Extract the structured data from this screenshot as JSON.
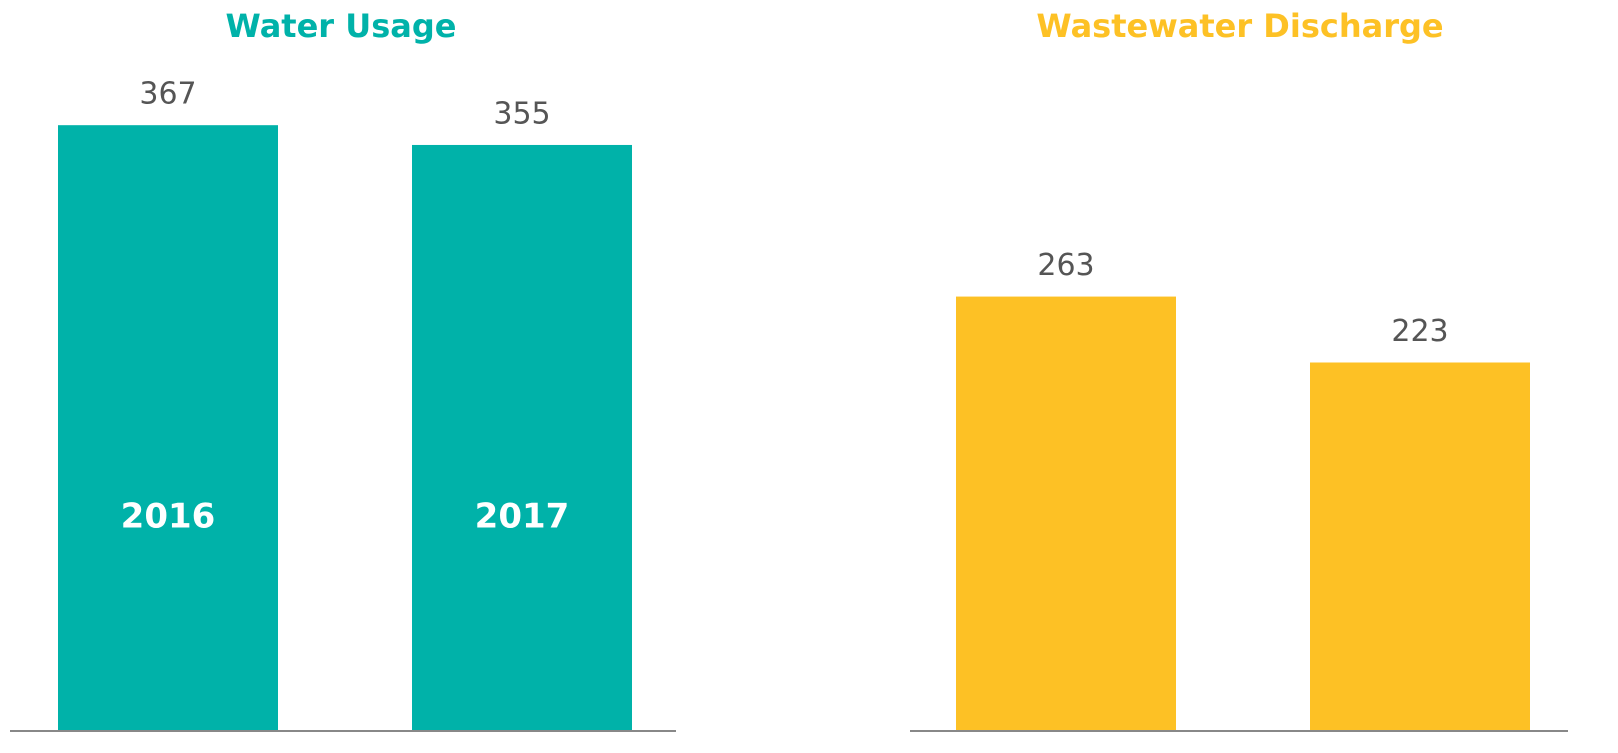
{
  "chart_data": [
    {
      "type": "bar",
      "title": "Water Usage",
      "categories": [
        "2016",
        "2017"
      ],
      "values": [
        367,
        355
      ],
      "color": "#00b2a9"
    },
    {
      "type": "bar",
      "title": "Wastewater Discharge",
      "categories": [
        null,
        null
      ],
      "values": [
        263,
        223
      ],
      "color": "#fdc125"
    }
  ]
}
